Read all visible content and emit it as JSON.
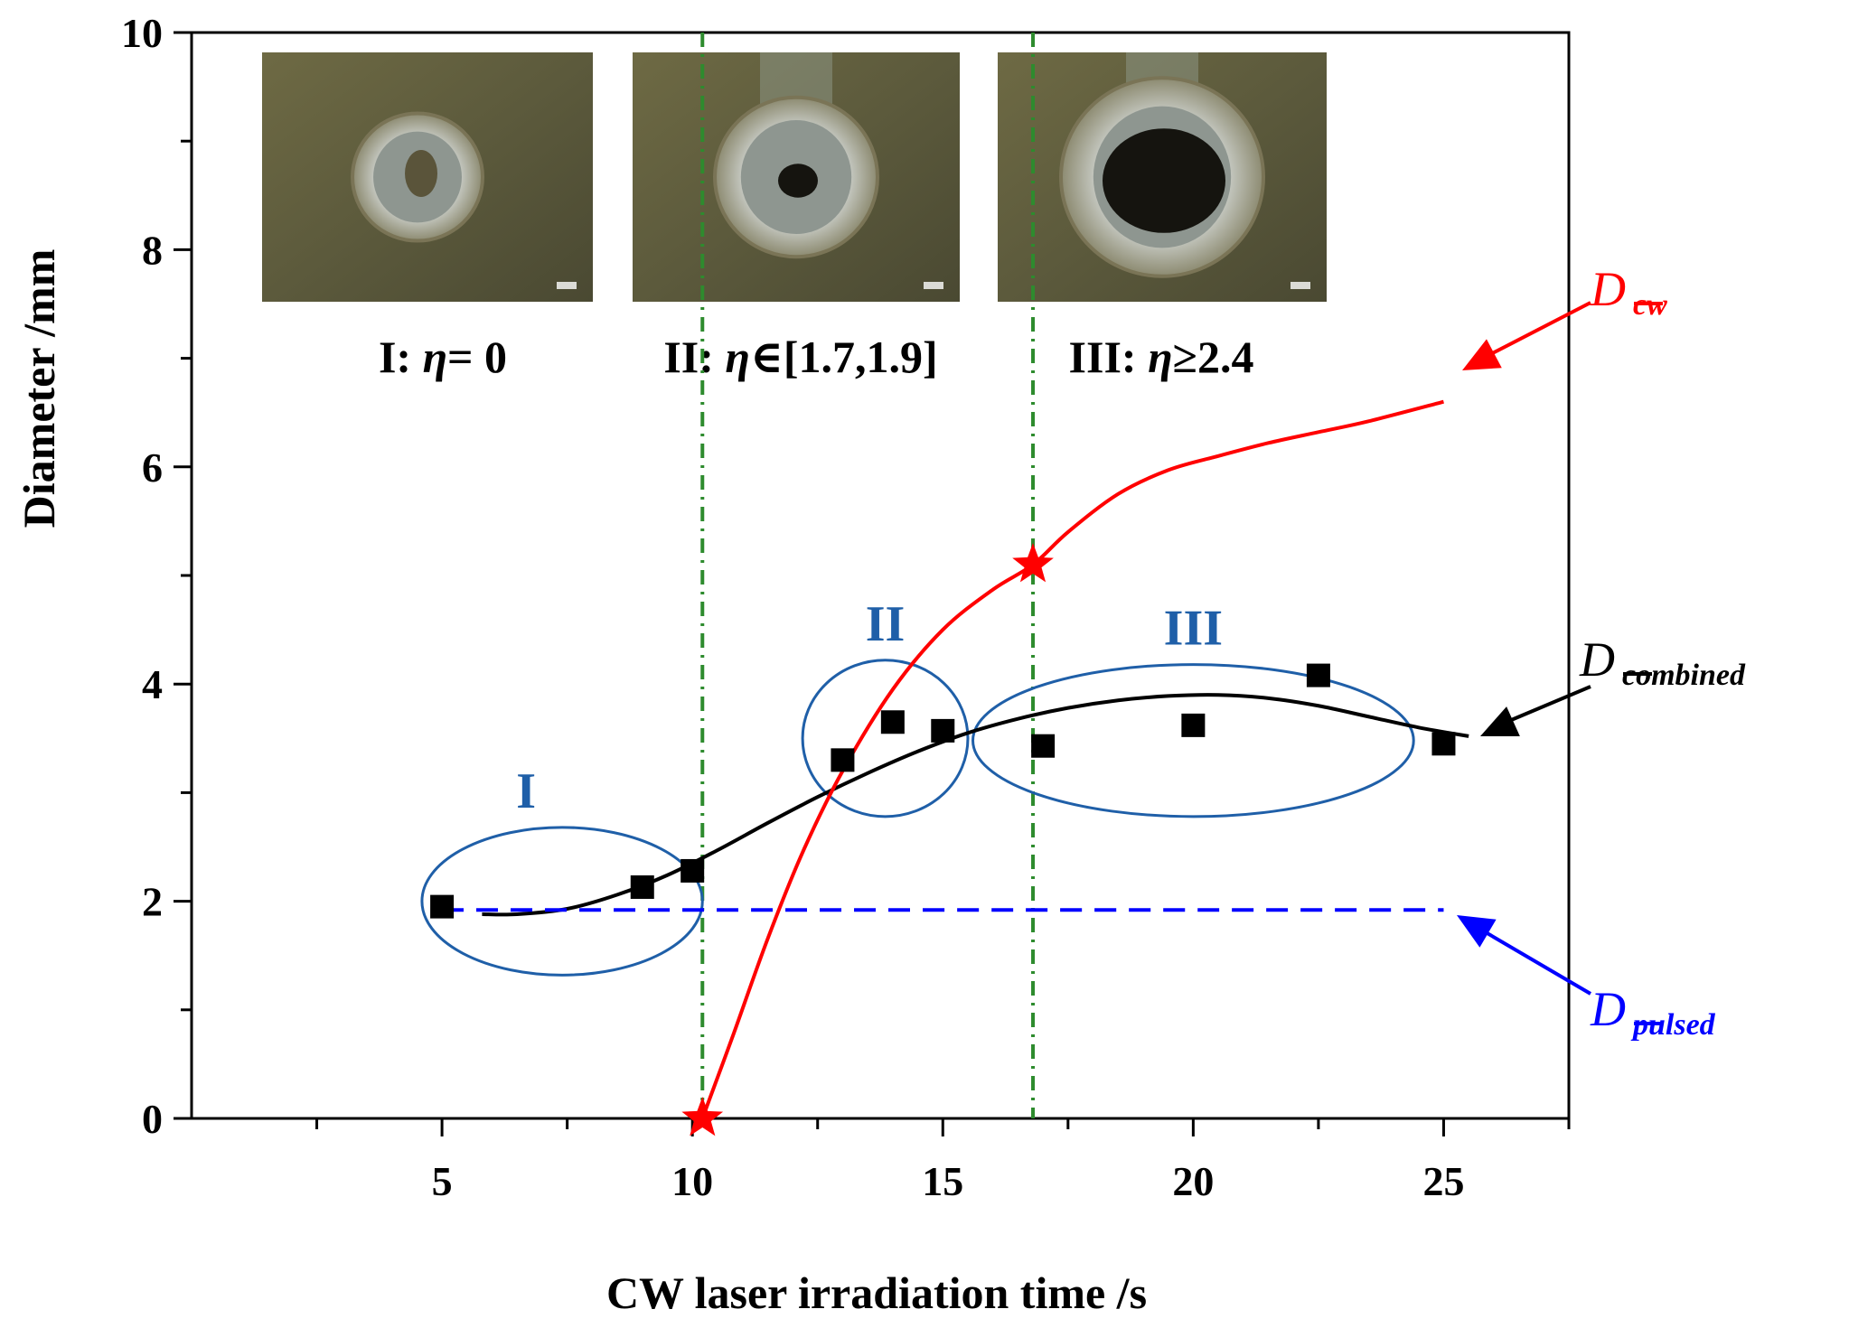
{
  "chart_data": {
    "type": "scatter",
    "xlabel": "CW laser irradiation time /s",
    "ylabel": "Diameter /mm",
    "xlim": [
      0,
      27.5
    ],
    "ylim": [
      0,
      10
    ],
    "x_ticks": [
      5,
      10,
      15,
      20,
      25
    ],
    "y_ticks": [
      0,
      2,
      4,
      6,
      8,
      10
    ],
    "grid": false,
    "series": [
      {
        "kind": "scatter",
        "color": "#000000",
        "points": [
          [
            5,
            1.95
          ],
          [
            9,
            2.13
          ],
          [
            10,
            2.28
          ],
          [
            13,
            3.3
          ],
          [
            14,
            3.65
          ],
          [
            15,
            3.57
          ],
          [
            17,
            3.43
          ],
          [
            20,
            3.62
          ],
          [
            22.5,
            4.08
          ],
          [
            25,
            3.45
          ]
        ]
      },
      {
        "name": "D_ combined",
        "label_main": "D",
        "label_sub": "combined",
        "kind": "line",
        "color": "#000000",
        "points": [
          [
            5.8,
            1.88
          ],
          [
            6.5,
            1.88
          ],
          [
            7.5,
            1.93
          ],
          [
            8.5,
            2.06
          ],
          [
            9.5,
            2.24
          ],
          [
            10.5,
            2.47
          ],
          [
            11.5,
            2.72
          ],
          [
            12.5,
            2.96
          ],
          [
            13.5,
            3.18
          ],
          [
            14.5,
            3.38
          ],
          [
            15.5,
            3.55
          ],
          [
            16.5,
            3.68
          ],
          [
            17.5,
            3.78
          ],
          [
            18.5,
            3.85
          ],
          [
            19.5,
            3.89
          ],
          [
            20.5,
            3.9
          ],
          [
            21.5,
            3.87
          ],
          [
            22.5,
            3.8
          ],
          [
            23.5,
            3.7
          ],
          [
            24.5,
            3.6
          ],
          [
            25.5,
            3.52
          ]
        ]
      },
      {
        "name": "D_ cw",
        "label_main": "D",
        "label_sub": "cw",
        "kind": "line",
        "color": "#ff0000",
        "points": [
          [
            10.2,
            0
          ],
          [
            10.8,
            0.75
          ],
          [
            11.5,
            1.65
          ],
          [
            12.2,
            2.45
          ],
          [
            13.0,
            3.2
          ],
          [
            14.0,
            3.95
          ],
          [
            15.0,
            4.5
          ],
          [
            16.0,
            4.87
          ],
          [
            16.8,
            5.1
          ],
          [
            17.5,
            5.4
          ],
          [
            18.5,
            5.75
          ],
          [
            19.5,
            5.97
          ],
          [
            20.5,
            6.1
          ],
          [
            21.5,
            6.22
          ],
          [
            22.5,
            6.32
          ],
          [
            23.5,
            6.42
          ],
          [
            25.0,
            6.6
          ]
        ]
      },
      {
        "name": "D_ pulsed",
        "label_main": "D",
        "label_sub": "pulsed",
        "kind": "dashed-line",
        "color": "#0000ff",
        "points": [
          [
            5.0,
            1.92
          ],
          [
            25.0,
            1.92
          ]
        ]
      }
    ],
    "star_markers": [
      [
        10.2,
        0
      ],
      [
        16.8,
        5.1
      ]
    ],
    "vertical_lines": [
      10.2,
      16.8
    ],
    "vertical_line_color": "#2e8b2e",
    "regions": [
      {
        "label": "I",
        "cx": 7.4,
        "cy": 2.0,
        "rx": 2.8,
        "ry": 0.68
      },
      {
        "label": "II",
        "cx": 13.85,
        "cy": 3.5,
        "rx": 1.65,
        "ry": 0.72
      },
      {
        "label": "III",
        "cx": 20.0,
        "cy": 3.48,
        "rx": 4.4,
        "ry": 0.7
      }
    ],
    "region_color": "#1f5fa8",
    "inset_captions": [
      {
        "roman": "I: ",
        "eta": "η",
        "rest": "= 0"
      },
      {
        "roman": "II: ",
        "eta": "η",
        "rest": "∈[1.7,1.9]"
      },
      {
        "roman": "III: ",
        "eta": "η",
        "rest": "≥2.4"
      }
    ]
  }
}
